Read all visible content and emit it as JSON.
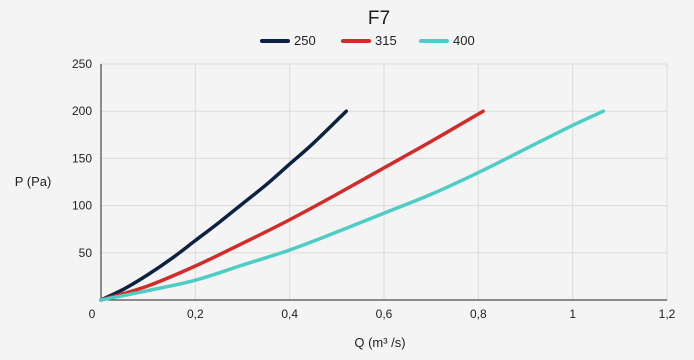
{
  "chart_data": {
    "type": "line",
    "title": "F7",
    "xlabel": "Q (m³ /s)",
    "ylabel": "P (Pa)",
    "xlim": [
      0,
      1.2
    ],
    "ylim": [
      0,
      250
    ],
    "xticks": [
      "0",
      "0,2",
      "0,4",
      "0,6",
      "0,8",
      "1",
      "1,2"
    ],
    "yticks": [
      "50",
      "100",
      "150",
      "200",
      "250"
    ],
    "grid": true,
    "legend_position": "top",
    "series": [
      {
        "name": "250",
        "color": "#0d2240",
        "x": [
          0,
          0.05,
          0.1,
          0.15,
          0.2,
          0.25,
          0.3,
          0.35,
          0.4,
          0.45,
          0.52
        ],
        "y": [
          0,
          12,
          27,
          44,
          63,
          82,
          102,
          122,
          144,
          166,
          200
        ]
      },
      {
        "name": "315",
        "color": "#d12b2b",
        "x": [
          0,
          0.1,
          0.2,
          0.3,
          0.4,
          0.5,
          0.6,
          0.7,
          0.81
        ],
        "y": [
          0,
          15,
          36,
          60,
          85,
          112,
          140,
          168,
          200
        ]
      },
      {
        "name": "400",
        "color": "#4ecdc4",
        "x": [
          0,
          0.1,
          0.2,
          0.3,
          0.4,
          0.5,
          0.6,
          0.7,
          0.8,
          0.9,
          1.0,
          1.065
        ],
        "y": [
          0,
          10,
          21,
          37,
          53,
          72,
          92,
          112,
          135,
          160,
          185,
          200
        ]
      }
    ]
  }
}
